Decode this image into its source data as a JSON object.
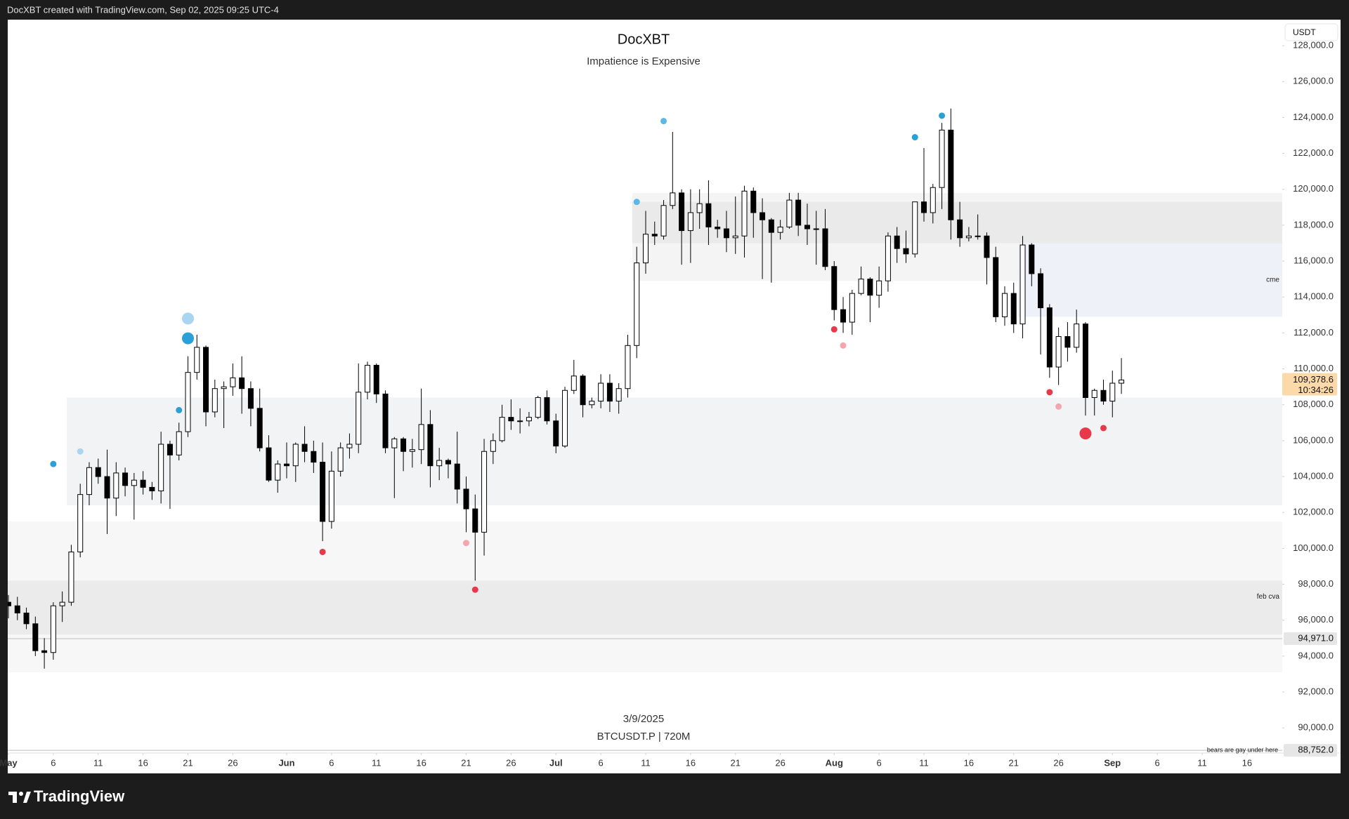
{
  "header": {
    "text": "DocXBT created with TradingView.com, Sep 02, 2025 09:25 UTC-4"
  },
  "footer": {
    "logo": "TradingView"
  },
  "chart_data": {
    "type": "candlestick",
    "title": "DocXBT",
    "subtitle": "Impatience is Expensive",
    "watermark_date": "3/9/2025",
    "symbol": "BTCUSDT.P | 720M",
    "currency": "USDT",
    "grid": false,
    "up_color": "#ffffff",
    "down_color": "#000000",
    "xlim": [
      "05-01",
      "09-20"
    ],
    "ylim": [
      88600,
      129450
    ],
    "x": [
      "05-01",
      "05-02",
      "05-03",
      "05-04",
      "05-05",
      "05-06",
      "05-07",
      "05-08",
      "05-09",
      "05-10",
      "05-11",
      "05-12",
      "05-13",
      "05-14",
      "05-15",
      "05-16",
      "05-17",
      "05-18",
      "05-19",
      "05-20",
      "05-21",
      "05-22",
      "05-23",
      "05-24",
      "05-25",
      "05-26",
      "05-27",
      "05-28",
      "05-29",
      "05-30",
      "05-31",
      "06-01",
      "06-02",
      "06-03",
      "06-04",
      "06-05",
      "06-06",
      "06-07",
      "06-08",
      "06-09",
      "06-10",
      "06-11",
      "06-12",
      "06-13",
      "06-14",
      "06-15",
      "06-16",
      "06-17",
      "06-18",
      "06-19",
      "06-20",
      "06-21",
      "06-22",
      "06-23",
      "06-24",
      "06-25",
      "06-26",
      "06-27",
      "06-28",
      "06-29",
      "06-30",
      "07-01",
      "07-02",
      "07-03",
      "07-04",
      "07-05",
      "07-06",
      "07-07",
      "07-08",
      "07-09",
      "07-10",
      "07-11",
      "07-12",
      "07-13",
      "07-14",
      "07-15",
      "07-16",
      "07-17",
      "07-18",
      "07-19",
      "07-20",
      "07-21",
      "07-22",
      "07-23",
      "07-24",
      "07-25",
      "07-26",
      "07-27",
      "07-28",
      "07-29",
      "07-30",
      "07-31",
      "08-01",
      "08-02",
      "08-03",
      "08-04",
      "08-05",
      "08-06",
      "08-07",
      "08-08",
      "08-09",
      "08-10",
      "08-11",
      "08-12",
      "08-13",
      "08-14",
      "08-15",
      "08-16",
      "08-17",
      "08-18",
      "08-19",
      "08-20",
      "08-21",
      "08-22",
      "08-23",
      "08-24",
      "08-25",
      "08-26",
      "08-27",
      "08-28",
      "08-29",
      "08-30",
      "08-31",
      "09-01",
      "09-02"
    ],
    "ohlc": [
      [
        97000,
        97400,
        96100,
        96800
      ],
      [
        96800,
        97300,
        96000,
        96400
      ],
      [
        96400,
        96700,
        95500,
        95800
      ],
      [
        95800,
        96200,
        94000,
        94300
      ],
      [
        94300,
        95000,
        93300,
        94200
      ],
      [
        94200,
        97000,
        93800,
        96800
      ],
      [
        96800,
        97600,
        95900,
        97000
      ],
      [
        97000,
        100200,
        96800,
        99800
      ],
      [
        99800,
        103600,
        99500,
        103000
      ],
      [
        103000,
        104800,
        102400,
        104500
      ],
      [
        104500,
        105000,
        103600,
        104000
      ],
      [
        104000,
        105500,
        100800,
        102800
      ],
      [
        102800,
        104800,
        101800,
        104200
      ],
      [
        104200,
        104500,
        102900,
        103500
      ],
      [
        103500,
        104200,
        101600,
        103800
      ],
      [
        103800,
        104300,
        103000,
        103400
      ],
      [
        103400,
        103700,
        102700,
        103200
      ],
      [
        103200,
        106500,
        102500,
        105800
      ],
      [
        105800,
        106000,
        102200,
        105200
      ],
      [
        105200,
        107000,
        104900,
        106500
      ],
      [
        106500,
        110700,
        106200,
        109800
      ],
      [
        109800,
        111900,
        109400,
        111200
      ],
      [
        111200,
        111300,
        106800,
        107600
      ],
      [
        107600,
        109400,
        107300,
        108900
      ],
      [
        108900,
        109300,
        106700,
        109000
      ],
      [
        109000,
        110300,
        108500,
        109500
      ],
      [
        109500,
        110700,
        107500,
        108900
      ],
      [
        108900,
        109300,
        106800,
        107800
      ],
      [
        107800,
        108900,
        105400,
        105600
      ],
      [
        105600,
        106300,
        103700,
        103800
      ],
      [
        103800,
        104900,
        103100,
        104700
      ],
      [
        104700,
        105900,
        103900,
        104600
      ],
      [
        104600,
        105900,
        103700,
        105800
      ],
      [
        105800,
        106800,
        104800,
        105400
      ],
      [
        105400,
        106000,
        104200,
        104800
      ],
      [
        104800,
        105900,
        100400,
        101500
      ],
      [
        101500,
        105400,
        101100,
        104300
      ],
      [
        104300,
        105900,
        104000,
        105600
      ],
      [
        105600,
        106400,
        105000,
        105800
      ],
      [
        105800,
        110300,
        105300,
        108700
      ],
      [
        108700,
        110400,
        108300,
        110200
      ],
      [
        110200,
        110300,
        108100,
        108600
      ],
      [
        108600,
        108800,
        105300,
        105600
      ],
      [
        105600,
        106200,
        102800,
        106100
      ],
      [
        106100,
        106200,
        104300,
        105400
      ],
      [
        105400,
        106100,
        104500,
        105500
      ],
      [
        105500,
        108900,
        104700,
        106900
      ],
      [
        106900,
        107700,
        103400,
        104600
      ],
      [
        104600,
        105600,
        103800,
        104900
      ],
      [
        104900,
        105000,
        103900,
        104700
      ],
      [
        104700,
        106500,
        102500,
        103300
      ],
      [
        103300,
        104000,
        100900,
        102200
      ],
      [
        102200,
        103000,
        98200,
        100900
      ],
      [
        100900,
        106100,
        99600,
        105400
      ],
      [
        105400,
        106400,
        104700,
        106000
      ],
      [
        106000,
        108000,
        105900,
        107300
      ],
      [
        107300,
        108300,
        106600,
        107100
      ],
      [
        107100,
        107800,
        106400,
        107100
      ],
      [
        107100,
        107600,
        106800,
        107300
      ],
      [
        107300,
        108500,
        107200,
        108400
      ],
      [
        108400,
        108800,
        106900,
        107100
      ],
      [
        107100,
        107500,
        105300,
        105700
      ],
      [
        105700,
        109000,
        105600,
        108800
      ],
      [
        108800,
        110500,
        108600,
        109600
      ],
      [
        109600,
        109700,
        107300,
        108000
      ],
      [
        108000,
        108400,
        107800,
        108200
      ],
      [
        108200,
        109700,
        107800,
        109200
      ],
      [
        109200,
        109700,
        107600,
        108200
      ],
      [
        108200,
        109200,
        107500,
        108900
      ],
      [
        108900,
        111900,
        108400,
        111300
      ],
      [
        111300,
        116800,
        110600,
        115900
      ],
      [
        115900,
        118800,
        115300,
        117500
      ],
      [
        117500,
        118200,
        116900,
        117400
      ],
      [
        117400,
        119400,
        117200,
        119100
      ],
      [
        119100,
        123200,
        118900,
        119800
      ],
      [
        119800,
        120000,
        115800,
        117700
      ],
      [
        117700,
        120000,
        115900,
        118700
      ],
      [
        118700,
        120000,
        117800,
        119200
      ],
      [
        119200,
        120500,
        116900,
        117900
      ],
      [
        117900,
        118300,
        117300,
        117800
      ],
      [
        117800,
        118800,
        116500,
        117300
      ],
      [
        117300,
        119600,
        116400,
        117400
      ],
      [
        117400,
        120200,
        116200,
        119900
      ],
      [
        119900,
        120100,
        117300,
        118700
      ],
      [
        118700,
        119500,
        115000,
        118300
      ],
      [
        118300,
        118400,
        114800,
        117600
      ],
      [
        117600,
        118300,
        117200,
        117900
      ],
      [
        117900,
        119800,
        117800,
        119400
      ],
      [
        119400,
        119800,
        117400,
        118000
      ],
      [
        118000,
        119200,
        116900,
        117800
      ],
      [
        117800,
        118800,
        115800,
        117800
      ],
      [
        117800,
        118900,
        115500,
        115700
      ],
      [
        115700,
        116000,
        112700,
        113300
      ],
      [
        113300,
        114000,
        112000,
        112600
      ],
      [
        112600,
        114400,
        111900,
        114200
      ],
      [
        114200,
        115700,
        114100,
        115000
      ],
      [
        115000,
        115100,
        112600,
        114100
      ],
      [
        114100,
        115700,
        113400,
        114900
      ],
      [
        114900,
        117600,
        114300,
        117400
      ],
      [
        117400,
        117900,
        115900,
        116700
      ],
      [
        116700,
        117700,
        115900,
        116400
      ],
      [
        116400,
        119300,
        116200,
        119300
      ],
      [
        119300,
        122300,
        118200,
        118700
      ],
      [
        118700,
        120300,
        118100,
        120100
      ],
      [
        120100,
        123700,
        118900,
        123300
      ],
      [
        123300,
        124500,
        117200,
        118300
      ],
      [
        118300,
        119300,
        116800,
        117300
      ],
      [
        117300,
        117900,
        117100,
        117400
      ],
      [
        117400,
        118600,
        117200,
        117400
      ],
      [
        117400,
        117600,
        114700,
        116200
      ],
      [
        116200,
        116800,
        112600,
        112900
      ],
      [
        112900,
        114600,
        112400,
        114200
      ],
      [
        114200,
        114800,
        112000,
        112500
      ],
      [
        112500,
        117400,
        111700,
        116900
      ],
      [
        116900,
        117000,
        114600,
        115300
      ],
      [
        115300,
        115600,
        110800,
        113400
      ],
      [
        113400,
        113600,
        109500,
        110100
      ],
      [
        110100,
        112300,
        109100,
        111800
      ],
      [
        111800,
        112600,
        110400,
        111200
      ],
      [
        111200,
        113300,
        110900,
        112500
      ],
      [
        112500,
        112600,
        107400,
        108400
      ],
      [
        108400,
        108900,
        107400,
        108800
      ],
      [
        108800,
        109400,
        108000,
        108200
      ],
      [
        108200,
        109900,
        107300,
        109200
      ],
      [
        109200,
        110600,
        108600,
        109378.6
      ]
    ],
    "xticks": [
      {
        "value": "05-01",
        "label": "May"
      },
      {
        "value": "05-06",
        "label": "6"
      },
      {
        "value": "05-11",
        "label": "11"
      },
      {
        "value": "05-16",
        "label": "16"
      },
      {
        "value": "05-21",
        "label": "21"
      },
      {
        "value": "05-26",
        "label": "26"
      },
      {
        "value": "06-01",
        "label": "Jun"
      },
      {
        "value": "06-06",
        "label": "6"
      },
      {
        "value": "06-11",
        "label": "11"
      },
      {
        "value": "06-16",
        "label": "16"
      },
      {
        "value": "06-21",
        "label": "21"
      },
      {
        "value": "06-26",
        "label": "26"
      },
      {
        "value": "07-01",
        "label": "Jul"
      },
      {
        "value": "07-06",
        "label": "6"
      },
      {
        "value": "07-11",
        "label": "11"
      },
      {
        "value": "07-16",
        "label": "16"
      },
      {
        "value": "07-21",
        "label": "21"
      },
      {
        "value": "07-26",
        "label": "26"
      },
      {
        "value": "08-01",
        "label": "Aug"
      },
      {
        "value": "08-06",
        "label": "6"
      },
      {
        "value": "08-11",
        "label": "11"
      },
      {
        "value": "08-16",
        "label": "16"
      },
      {
        "value": "08-21",
        "label": "21"
      },
      {
        "value": "08-26",
        "label": "26"
      },
      {
        "value": "09-01",
        "label": "Sep"
      },
      {
        "value": "09-06",
        "label": "6"
      },
      {
        "value": "09-11",
        "label": "11"
      },
      {
        "value": "09-16",
        "label": "16"
      }
    ],
    "yticks": [
      {
        "value": 90000,
        "label": "90,000.0"
      },
      {
        "value": 92000,
        "label": "92,000.0"
      },
      {
        "value": 94000,
        "label": "94,000.0"
      },
      {
        "value": 96000,
        "label": "96,000.0"
      },
      {
        "value": 98000,
        "label": "98,000.0"
      },
      {
        "value": 100000,
        "label": "100,000.0"
      },
      {
        "value": 102000,
        "label": "102,000.0"
      },
      {
        "value": 104000,
        "label": "104,000.0"
      },
      {
        "value": 106000,
        "label": "106,000.0"
      },
      {
        "value": 108000,
        "label": "108,000.0"
      },
      {
        "value": 110000,
        "label": "110,000.0"
      },
      {
        "value": 112000,
        "label": "112,000.0"
      },
      {
        "value": 114000,
        "label": "114,000.0"
      },
      {
        "value": 116000,
        "label": "116,000.0"
      },
      {
        "value": 118000,
        "label": "118,000.0"
      },
      {
        "value": 120000,
        "label": "120,000.0"
      },
      {
        "value": 122000,
        "label": "122,000.0"
      },
      {
        "value": 124000,
        "label": "124,000.0"
      },
      {
        "value": 126000,
        "label": "126,000.0"
      },
      {
        "value": 128000,
        "label": "128,000.0"
      }
    ],
    "zones": [
      {
        "start": "05-08",
        "low": 102400,
        "high": 108400,
        "color": "#f2f3f5"
      },
      {
        "start": "05-01",
        "low": 93100,
        "high": 101500,
        "color": "#f7f7f7",
        "label": "feb cva"
      },
      {
        "start": "05-01",
        "low": 95200,
        "high": 98200,
        "color": "#ebebeb"
      },
      {
        "start": "07-10",
        "low": 114900,
        "high": 119800,
        "color": "#f4f4f4"
      },
      {
        "start": "07-10",
        "low": 117000,
        "high": 119300,
        "color": "#eaeaea"
      },
      {
        "start": "08-22",
        "low": 112900,
        "high": 117000,
        "color": "#eef2f8",
        "label": "cme"
      }
    ],
    "signals": [
      {
        "x": "05-06",
        "price": 104700,
        "size": 1,
        "color": "#2a9fd8"
      },
      {
        "x": "05-09",
        "price": 105400,
        "size": 1,
        "color": "#a8d5f0"
      },
      {
        "x": "05-20",
        "price": 107700,
        "size": 1,
        "color": "#2a9fd8"
      },
      {
        "x": "05-21",
        "price": 111700,
        "size": 3,
        "color": "#2a9fd8"
      },
      {
        "x": "05-21",
        "price": 112800,
        "size": 3,
        "color": "#a8d5f0"
      },
      {
        "x": "06-05",
        "price": 99800,
        "size": 1,
        "color": "#e8394a"
      },
      {
        "x": "06-21",
        "price": 100300,
        "size": 1,
        "color": "#f4a5ad"
      },
      {
        "x": "06-22",
        "price": 97700,
        "size": 1,
        "color": "#e8394a"
      },
      {
        "x": "07-10",
        "price": 119300,
        "size": 1,
        "color": "#5bb8e6"
      },
      {
        "x": "07-13",
        "price": 123800,
        "size": 1,
        "color": "#5bb8e6"
      },
      {
        "x": "08-01",
        "price": 112200,
        "size": 1,
        "color": "#e8394a"
      },
      {
        "x": "08-02",
        "price": 111300,
        "size": 1,
        "color": "#f4a5ad"
      },
      {
        "x": "08-10",
        "price": 122900,
        "size": 1,
        "color": "#2a9fd8"
      },
      {
        "x": "08-13",
        "price": 124100,
        "size": 1,
        "color": "#2a9fd8"
      },
      {
        "x": "08-25",
        "price": 108700,
        "size": 1,
        "color": "#e8394a"
      },
      {
        "x": "08-26",
        "price": 107900,
        "size": 1,
        "color": "#f4a5ad"
      },
      {
        "x": "08-29",
        "price": 106400,
        "size": 3,
        "color": "#e8394a"
      },
      {
        "x": "08-31",
        "price": 106700,
        "size": 1,
        "color": "#e8394a"
      }
    ],
    "levels": [
      {
        "price": 94971,
        "label": "94,971.0",
        "color": "#e6e6e6"
      },
      {
        "price": 88752,
        "label": "88,752.0",
        "color": "#e6e6e6",
        "note": "bears are gay under here"
      }
    ],
    "last_price": {
      "price": 109378.6,
      "label": "109,378.6",
      "countdown": "10:34:26",
      "color": "#fcd9a8"
    }
  }
}
